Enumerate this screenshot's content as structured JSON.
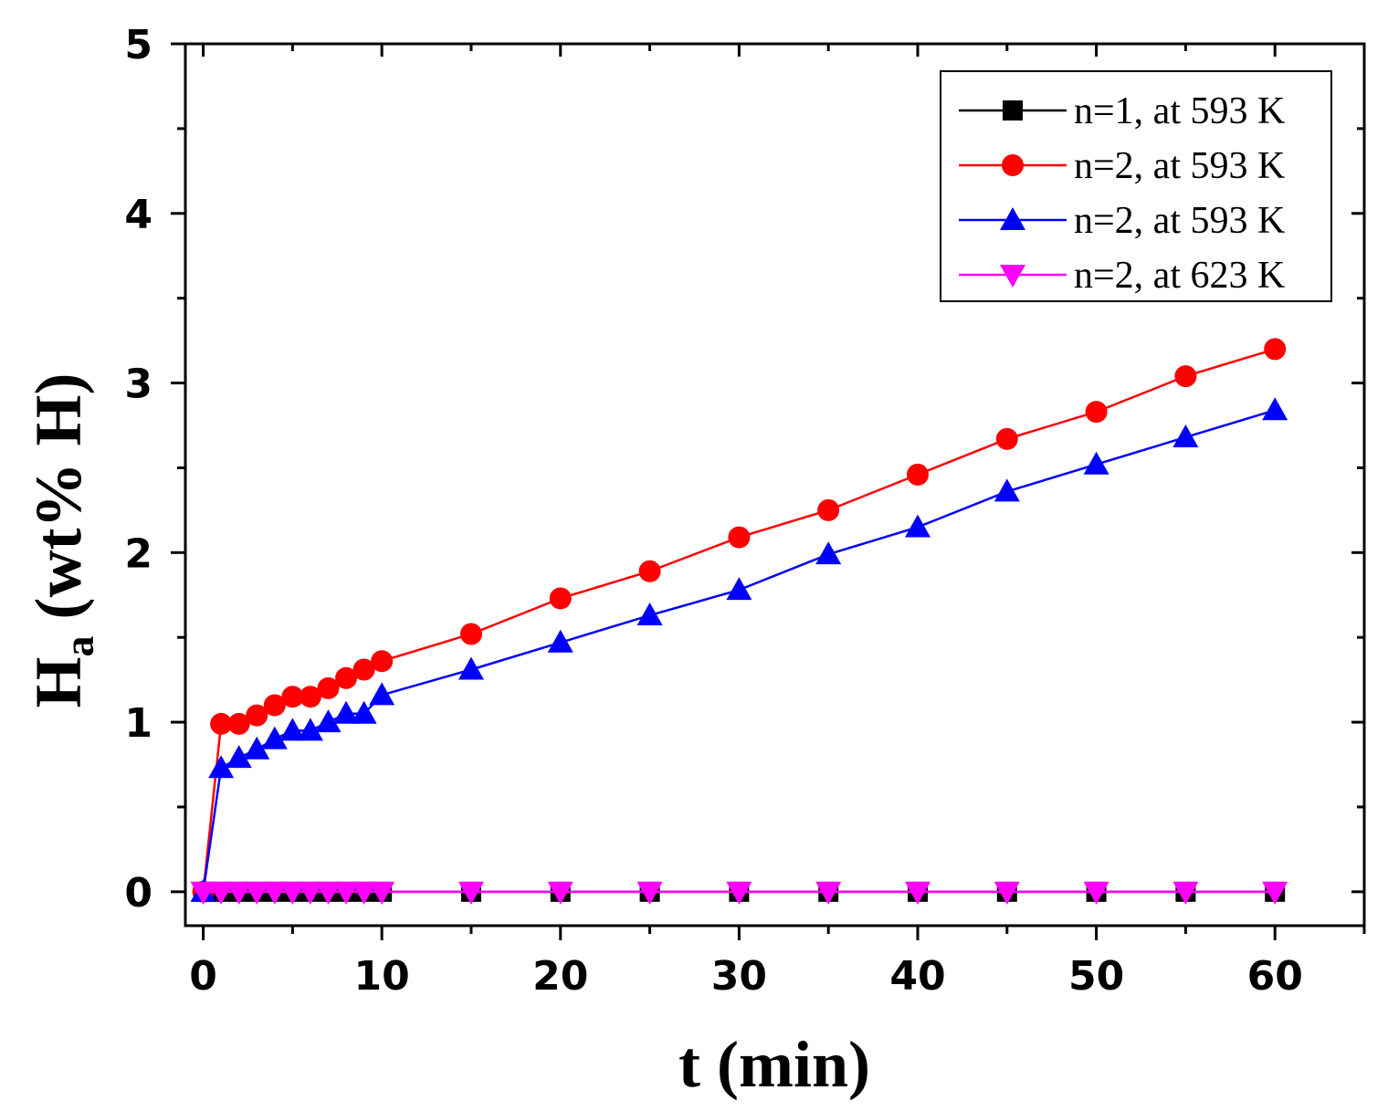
{
  "chart_data": {
    "type": "line",
    "title": "",
    "xlabel": "t (min)",
    "ylabel": {
      "main": "H",
      "subscript": "a",
      "rest": " (wt% H)"
    },
    "xlim": [
      -1,
      65
    ],
    "ylim": [
      -0.2,
      5
    ],
    "xticks": [
      0,
      10,
      20,
      30,
      40,
      50,
      60
    ],
    "yticks": [
      0,
      1,
      2,
      3,
      4,
      5
    ],
    "legend_position": "top-right",
    "series": [
      {
        "name": "n=1, at 593 K",
        "color": "#000000",
        "marker": "square",
        "x": [
          0,
          1,
          2,
          3,
          4,
          5,
          6,
          7,
          8,
          9,
          10,
          15,
          20,
          25,
          30,
          35,
          40,
          45,
          50,
          55,
          60
        ],
        "y": [
          0,
          0,
          0,
          0,
          0,
          0,
          0,
          0,
          0,
          0,
          0,
          0,
          0,
          0,
          0,
          0,
          0,
          0,
          0,
          0,
          0
        ]
      },
      {
        "name": "n=2, at 593 K",
        "color": "#ff0000",
        "marker": "circle",
        "x": [
          0,
          1,
          2,
          3,
          4,
          5,
          6,
          7,
          8,
          9,
          10,
          15,
          20,
          25,
          30,
          35,
          40,
          45,
          50,
          55,
          60
        ],
        "y": [
          0,
          0.99,
          0.99,
          1.04,
          1.1,
          1.15,
          1.15,
          1.2,
          1.26,
          1.31,
          1.36,
          1.52,
          1.73,
          1.89,
          2.09,
          2.25,
          2.46,
          2.67,
          2.83,
          3.04,
          3.2
        ]
      },
      {
        "name": "n=2, at 593 K",
        "color": "#0000ff",
        "marker": "triangle-up",
        "x": [
          0,
          1,
          2,
          3,
          4,
          5,
          6,
          7,
          8,
          9,
          10,
          15,
          20,
          25,
          30,
          35,
          40,
          45,
          50,
          55,
          60
        ],
        "y": [
          0,
          0.73,
          0.79,
          0.84,
          0.9,
          0.95,
          0.95,
          1.0,
          1.05,
          1.05,
          1.16,
          1.31,
          1.47,
          1.63,
          1.78,
          1.99,
          2.15,
          2.36,
          2.52,
          2.68,
          2.84
        ]
      },
      {
        "name": "n=2, at 623 K",
        "color": "#ff00ff",
        "marker": "triangle-down",
        "x": [
          0,
          1,
          2,
          3,
          4,
          5,
          6,
          7,
          8,
          9,
          10,
          15,
          20,
          25,
          30,
          35,
          40,
          45,
          50,
          55,
          60
        ],
        "y": [
          0,
          0,
          0,
          0,
          0,
          0,
          0,
          0,
          0,
          0,
          0,
          0,
          0,
          0,
          0,
          0,
          0,
          0,
          0,
          0,
          0
        ]
      }
    ]
  }
}
